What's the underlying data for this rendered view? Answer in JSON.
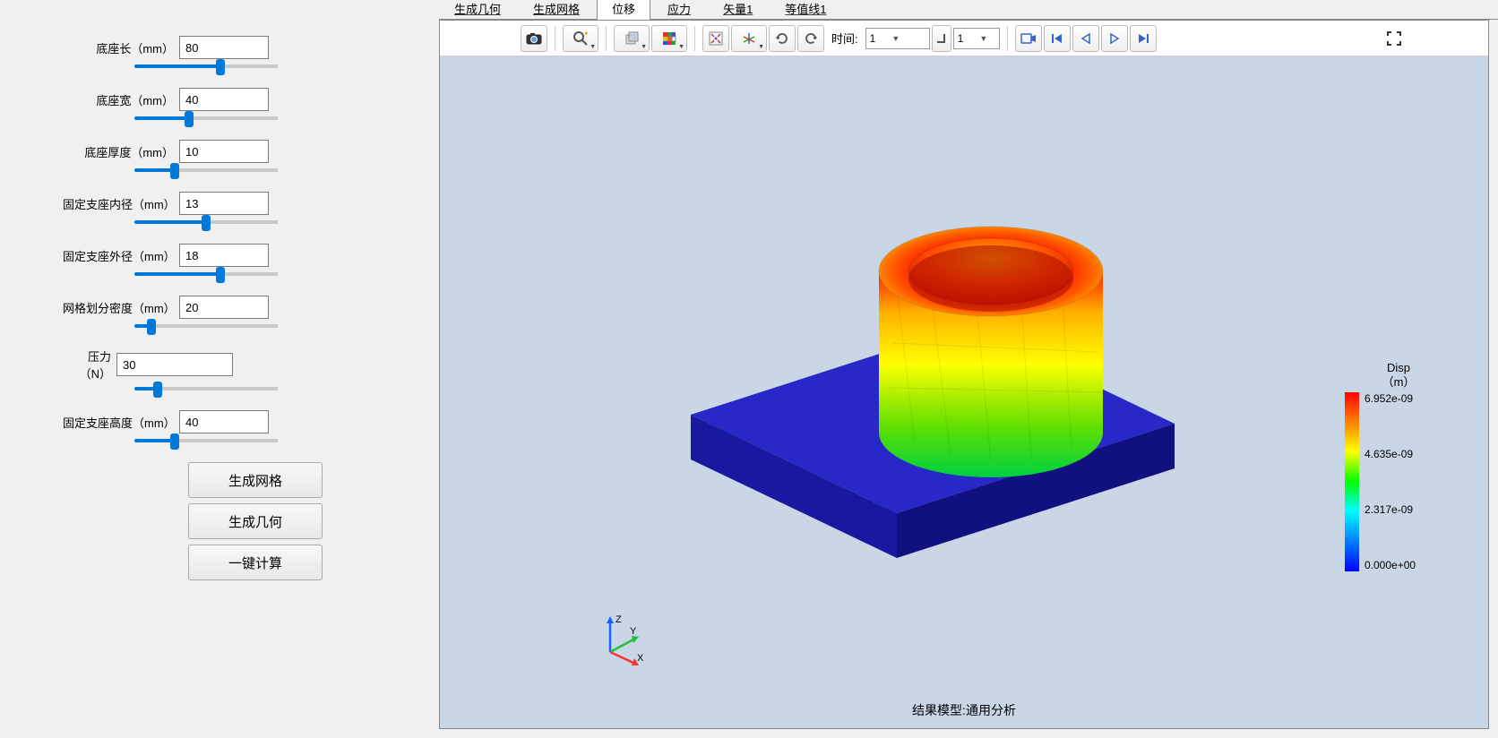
{
  "params": [
    {
      "label": "底座长（mm）",
      "value": "80",
      "slider_pct": 60
    },
    {
      "label": "底座宽（mm）",
      "value": "40",
      "slider_pct": 38
    },
    {
      "label": "底座厚度（mm）",
      "value": "10",
      "slider_pct": 28
    },
    {
      "label": "固定支座内径（mm）",
      "value": "13",
      "slider_pct": 50
    },
    {
      "label": "固定支座外径（mm）",
      "value": "18",
      "slider_pct": 60
    },
    {
      "label": "网格划分密度（mm）",
      "value": "20",
      "slider_pct": 12
    },
    {
      "label": "压力（N）",
      "value": "30",
      "slider_pct": 16,
      "label_width": 60,
      "input_width": 130,
      "slider_ml": 80
    },
    {
      "label": "固定支座高度（mm）",
      "value": "40",
      "slider_pct": 28
    }
  ],
  "buttons": {
    "gen_mesh": "生成网格",
    "gen_geom": "生成几何",
    "one_click": "一键计算"
  },
  "tabs": [
    "生成几何",
    "生成网格",
    "位移",
    "应力",
    "矢量1",
    "等值线1"
  ],
  "active_tab_index": 2,
  "toolbar": {
    "time_label": "时间:",
    "time_value": "1",
    "frame_value": "1"
  },
  "viewer": {
    "caption": "结果模型:通用分析",
    "legend": {
      "title_line1": "Disp",
      "title_line2": "（m）",
      "labels": [
        "6.952e-09",
        "4.635e-09",
        "2.317e-09",
        "0.000e+00"
      ],
      "gradient_stops": [
        "#ff0000",
        "#ffff00",
        "#00ff00",
        "#00ffff",
        "#0000ff"
      ]
    },
    "axis_labels": {
      "x": "X",
      "y": "Y",
      "z": "Z"
    },
    "model": {
      "type": "fea_result_3d",
      "base": {
        "color": "#1a1a9e",
        "side_color": "#0f0f6e",
        "top_color": "#2020b0"
      },
      "cylinder_gradient": {
        "top": "#ff0000",
        "upper": "#ffff00",
        "lower": "#00ff00",
        "inner_top": "#ff4000"
      },
      "background": "#c8d6e5"
    }
  }
}
